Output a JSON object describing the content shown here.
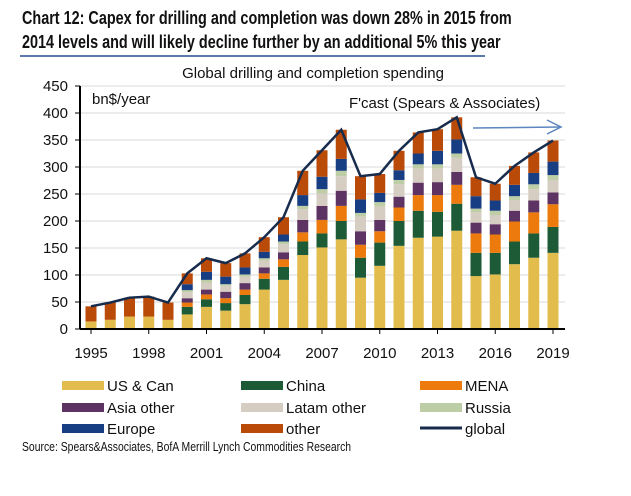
{
  "title_line1": "Chart 12: Capex for drilling and completion was down 28% in 2015 from",
  "title_line2": "2014 levels and will likely decline further by an additional 5% this year",
  "source": "Source: Spears&Associates, BofA Merrill Lynch Commodities Research",
  "chart_data": {
    "type": "bar",
    "stacked": true,
    "title": "Global drilling  and completion spending",
    "ylabel": "bn$/year",
    "annotation": "F'cast (Spears & Associates)",
    "ylim": [
      0,
      450
    ],
    "yticks": [
      0,
      50,
      100,
      150,
      200,
      250,
      300,
      350,
      400,
      450
    ],
    "xticks": [
      "1995",
      "1998",
      "2001",
      "2004",
      "2007",
      "2010",
      "2013",
      "2016",
      "2019"
    ],
    "grid": true,
    "legend_position": "bottom",
    "categories": [
      "1995",
      "1996",
      "1997",
      "1998",
      "1999",
      "2000",
      "2001",
      "2002",
      "2003",
      "2004",
      "2005",
      "2006",
      "2007",
      "2008",
      "2009",
      "2010",
      "2011",
      "2012",
      "2013",
      "2014",
      "2015",
      "2016",
      "2017",
      "2018",
      "2019"
    ],
    "series": [
      {
        "name": "US & Can",
        "color": "#E3BC4E",
        "values": [
          14,
          17,
          23,
          23,
          17,
          27,
          41,
          34,
          46,
          73,
          91,
          137,
          151,
          166,
          95,
          117,
          154,
          169,
          171,
          182,
          98,
          101,
          120,
          132,
          141
        ]
      },
      {
        "name": "China",
        "color": "#1D5B36",
        "values": [
          0,
          0,
          0,
          0,
          0,
          14,
          14,
          14,
          17,
          20,
          24,
          25,
          26,
          34,
          37,
          43,
          46,
          50,
          46,
          50,
          43,
          40,
          42,
          45,
          48
        ]
      },
      {
        "name": "MENA",
        "color": "#EC7A0C",
        "values": [
          0,
          0,
          0,
          0,
          0,
          8,
          9,
          9,
          10,
          10,
          14,
          17,
          25,
          28,
          24,
          21,
          25,
          29,
          31,
          35,
          36,
          34,
          37,
          39,
          42
        ]
      },
      {
        "name": "Asia other",
        "color": "#5C3362",
        "values": [
          0,
          0,
          0,
          0,
          0,
          8,
          9,
          12,
          12,
          11,
          13,
          23,
          26,
          28,
          25,
          21,
          20,
          23,
          24,
          24,
          20,
          19,
          20,
          22,
          22
        ]
      },
      {
        "name": "Latam other",
        "color": "#D5CCC2",
        "values": [
          0,
          0,
          0,
          0,
          0,
          11,
          13,
          11,
          12,
          13,
          15,
          20,
          23,
          27,
          27,
          25,
          23,
          26,
          25,
          26,
          19,
          17,
          20,
          21,
          23
        ]
      },
      {
        "name": "Russia",
        "color": "#BDCDA5",
        "values": [
          0,
          0,
          0,
          0,
          0,
          4,
          5,
          3,
          4,
          4,
          5,
          6,
          8,
          10,
          7,
          8,
          8,
          8,
          8,
          8,
          7,
          8,
          7,
          9,
          9
        ]
      },
      {
        "name": "Europe",
        "color": "#173D82",
        "values": [
          0,
          0,
          0,
          0,
          0,
          11,
          15,
          14,
          13,
          12,
          13,
          20,
          23,
          22,
          25,
          17,
          18,
          20,
          25,
          26,
          23,
          19,
          21,
          21,
          25
        ]
      },
      {
        "name": "other",
        "color": "#BA4A08",
        "values": [
          28,
          32,
          35,
          37,
          32,
          20,
          25,
          25,
          26,
          27,
          32,
          45,
          49,
          54,
          43,
          35,
          36,
          39,
          40,
          41,
          35,
          31,
          35,
          38,
          39
        ]
      }
    ],
    "line": {
      "name": "global",
      "color": "#172B4D",
      "values": [
        42,
        49,
        58,
        60,
        49,
        103,
        131,
        122,
        140,
        170,
        207,
        293,
        331,
        369,
        283,
        287,
        330,
        364,
        370,
        392,
        281,
        269,
        302,
        327,
        349
      ]
    },
    "forecast_arrow_color": "#5B86C0"
  }
}
